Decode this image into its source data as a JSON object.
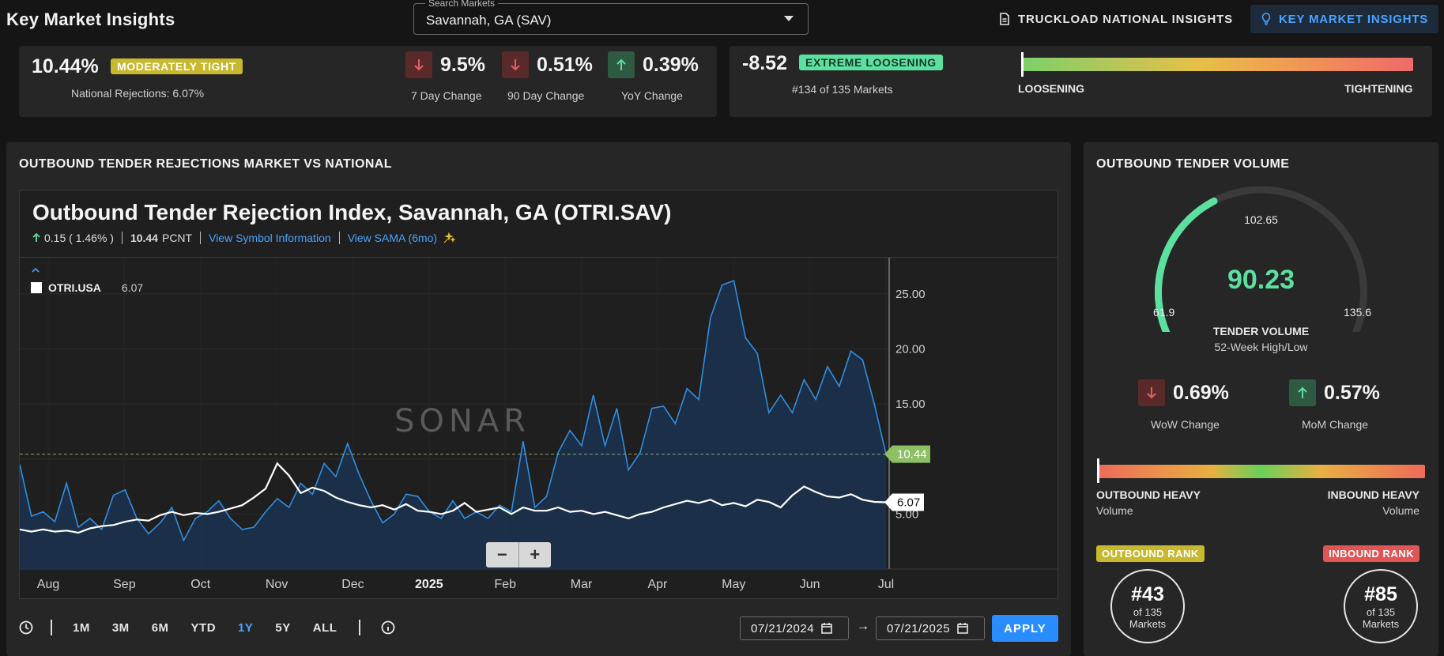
{
  "app": {
    "title": "Key Market Insights"
  },
  "search": {
    "legend": "Search Markets",
    "value": "Savannah, GA (SAV)"
  },
  "nav": {
    "truckload": "TRUCKLOAD NATIONAL INSIGHTS",
    "key_market": "KEY MARKET INSIGHTS"
  },
  "rejections_summary": {
    "value": "10.44%",
    "badge": "MODERATELY TIGHT",
    "national": "National Rejections: 6.07%",
    "changes": [
      {
        "value": "9.5%",
        "label": "7 Day Change",
        "direction": "down"
      },
      {
        "value": "0.51%",
        "label": "90 Day Change",
        "direction": "down"
      },
      {
        "value": "0.39%",
        "label": "YoY Change",
        "direction": "up"
      }
    ]
  },
  "momentum": {
    "value": "-8.52",
    "badge": "EXTREME LOOSENING",
    "rank": "#134 of 135 Markets",
    "left_label": "LOOSENING",
    "right_label": "TIGHTENING",
    "marker_fraction": 0.0
  },
  "chart_panel": {
    "section_title": "OUTBOUND TENDER REJECTIONS MARKET VS NATIONAL",
    "title": "Outbound Tender Rejection Index, Savannah, GA (OTRI.SAV)",
    "change": "0.15 ( 1.46% )",
    "current": "10.44",
    "unit": "PCNT",
    "link_symbol": "View Symbol Information",
    "link_sama": "View SAMA (6mo)",
    "watermark": "SONAR",
    "legend_name": "OTRI.USA",
    "legend_value": "6.07",
    "zoom_out": "−",
    "zoom_in": "+",
    "ranges": [
      "1M",
      "3M",
      "6M",
      "YTD",
      "1Y",
      "5Y",
      "ALL"
    ],
    "active_range": "1Y",
    "date_from": "07/21/2024",
    "date_to": "07/21/2025",
    "date_arrow": "→",
    "apply": "APPLY"
  },
  "chart_data": {
    "type": "area",
    "x_ticks": [
      "Aug",
      "Sep",
      "Oct",
      "Nov",
      "Dec",
      "2025",
      "Feb",
      "Mar",
      "Apr",
      "May",
      "Jun",
      "Jul"
    ],
    "y_ticks": [
      "25.00",
      "20.00",
      "15.00",
      "5.00"
    ],
    "ylim": [
      0,
      28
    ],
    "last_labels": {
      "sav": "10.44",
      "usa": "6.07"
    },
    "series": [
      {
        "name": "OTRI.SAV",
        "color": "#2f8ee0",
        "values": [
          9.5,
          4.8,
          5.2,
          4.3,
          7.8,
          3.8,
          4.6,
          3.6,
          6.7,
          7.2,
          4.6,
          3.2,
          4.2,
          5.6,
          2.6,
          4.6,
          5.2,
          6.2,
          4.6,
          3.6,
          3.8,
          5.2,
          6.4,
          5.6,
          7.8,
          6.8,
          9.6,
          8.4,
          11.4,
          8.6,
          6.2,
          4.2,
          5.0,
          6.8,
          6.6,
          5.2,
          4.6,
          6.2,
          4.6,
          5.2,
          4.6,
          5.8,
          5.2,
          11.6,
          5.6,
          6.6,
          10.6,
          12.6,
          11.2,
          15.8,
          11.2,
          14.6,
          9.0,
          10.6,
          14.6,
          14.8,
          13.2,
          16.4,
          15.4,
          22.8,
          25.8,
          26.2,
          21.0,
          19.6,
          14.2,
          15.8,
          14.2,
          17.2,
          15.4,
          18.4,
          16.6,
          19.8,
          19.0,
          15.0,
          10.44
        ]
      },
      {
        "name": "OTRI.USA",
        "color": "#ffffff",
        "values": [
          3.6,
          3.4,
          3.6,
          3.4,
          3.5,
          3.3,
          3.7,
          3.9,
          4.0,
          4.3,
          4.5,
          4.4,
          4.9,
          5.2,
          4.9,
          5.1,
          5.0,
          5.2,
          5.5,
          5.8,
          6.5,
          7.3,
          9.6,
          8.5,
          6.9,
          7.4,
          7.1,
          6.5,
          6.1,
          5.8,
          5.6,
          5.8,
          5.4,
          5.9,
          5.3,
          5.2,
          5.0,
          5.3,
          6.0,
          5.2,
          5.4,
          5.6,
          5.0,
          5.6,
          5.3,
          5.3,
          5.6,
          5.2,
          5.3,
          5.0,
          5.2,
          4.9,
          4.6,
          5.0,
          5.2,
          5.6,
          5.9,
          6.2,
          6.0,
          6.3,
          5.8,
          6.0,
          5.7,
          6.3,
          6.1,
          5.6,
          6.7,
          7.5,
          7.0,
          6.6,
          6.5,
          6.8,
          6.3,
          6.1,
          6.07
        ]
      }
    ]
  },
  "volume": {
    "section_title": "OUTBOUND TENDER VOLUME",
    "value": "90.23",
    "peak_label": "102.65",
    "low_label": "61.9",
    "high_label": "135.6",
    "fill_fraction": 0.38,
    "caption": "TENDER VOLUME",
    "sub_caption": "52-Week High/Low",
    "wow": {
      "value": "0.69%",
      "label": "WoW Change",
      "direction": "down"
    },
    "mom": {
      "value": "0.57%",
      "label": "MoM Change",
      "direction": "up"
    },
    "balance": {
      "left_title": "OUTBOUND HEAVY",
      "left_sub": "Volume",
      "right_title": "INBOUND HEAVY",
      "right_sub": "Volume",
      "marker_fraction": 0.0
    },
    "outbound_rank": {
      "badge": "OUTBOUND RANK",
      "number": "#43",
      "of": "of 135",
      "unit": "Markets"
    },
    "inbound_rank": {
      "badge": "INBOUND RANK",
      "number": "#85",
      "of": "of 135",
      "unit": "Markets"
    }
  }
}
